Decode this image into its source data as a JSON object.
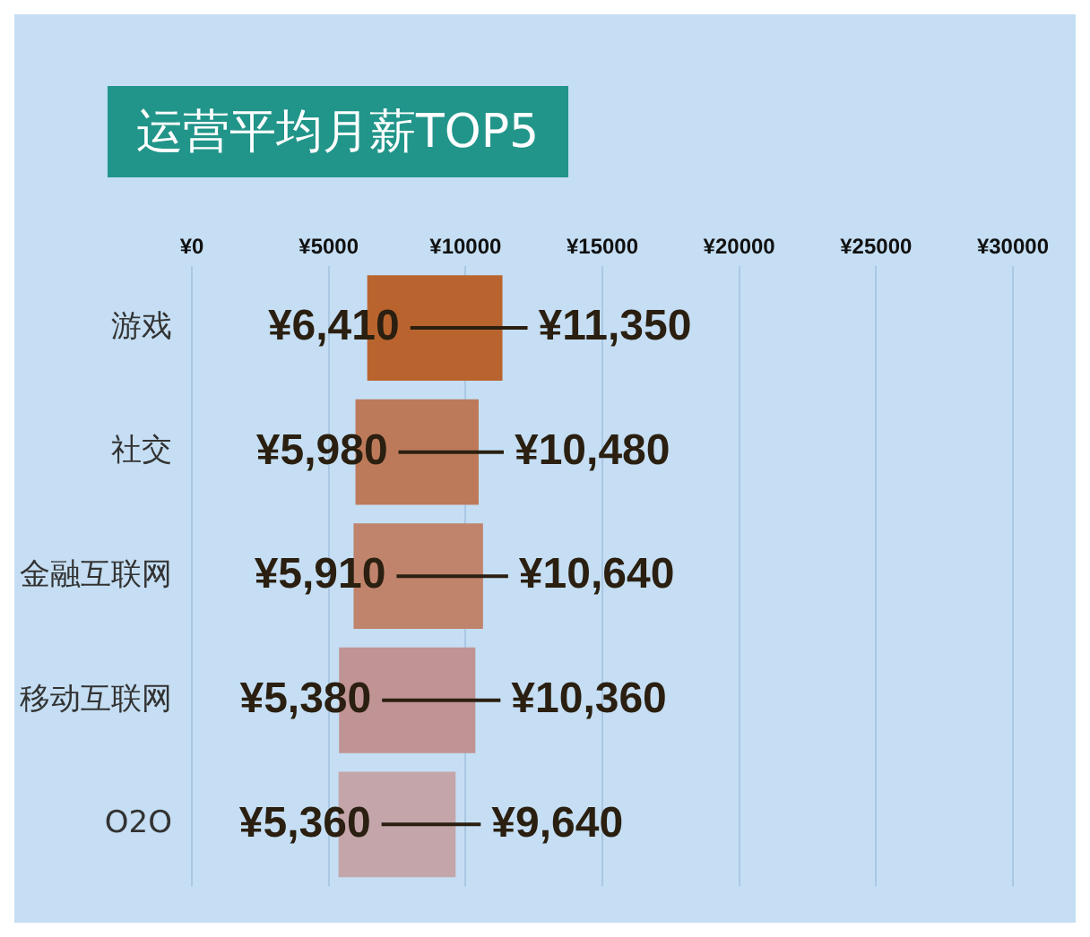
{
  "chart_data": {
    "type": "bar",
    "orientation": "horizontal",
    "title": "运营平均月薪TOP5",
    "categories": [
      "游戏",
      "社交",
      "金融互联网",
      "移动互联网",
      "O2O"
    ],
    "base": [
      6410,
      5980,
      5910,
      5380,
      5360
    ],
    "values": [
      4940,
      4500,
      4730,
      4980,
      4280
    ],
    "colors": [
      "#b9642f",
      "#bd7a5a",
      "#c0836c",
      "#c09394",
      "#c4a6aa"
    ],
    "annotations": [
      {
        "text": "¥6,410",
        "x": 6410,
        "y": "游戏"
      },
      {
        "text": "¥11,350",
        "x": 11350,
        "y": "游戏"
      },
      {
        "text": "¥5,980",
        "x": 5980,
        "y": "社交"
      },
      {
        "text": "¥10,480",
        "x": 10480,
        "y": "社交"
      },
      {
        "text": "¥5,910",
        "x": 5910,
        "y": "金融互联网"
      },
      {
        "text": "¥10,640",
        "x": 10640,
        "y": "金融互联网"
      },
      {
        "text": "¥5,380",
        "x": 5380,
        "y": "移动互联网"
      },
      {
        "text": "¥10,360",
        "x": 10360,
        "y": "移动互联网"
      },
      {
        "text": "¥5,360",
        "x": 5360,
        "y": "O2O"
      },
      {
        "text": "¥9,640",
        "x": 9640,
        "y": "O2O"
      }
    ],
    "xlim": [
      0,
      30000
    ],
    "xticks": [
      {
        "value": 0,
        "label": "¥0"
      },
      {
        "value": 5000,
        "label": "¥5000"
      },
      {
        "value": 10000,
        "label": "¥10000"
      },
      {
        "value": 15000,
        "label": "¥15000"
      },
      {
        "value": 20000,
        "label": "¥20000"
      },
      {
        "value": 25000,
        "label": "¥25000"
      },
      {
        "value": 30000,
        "label": "¥30000"
      }
    ],
    "grid": "x",
    "legend": false
  }
}
